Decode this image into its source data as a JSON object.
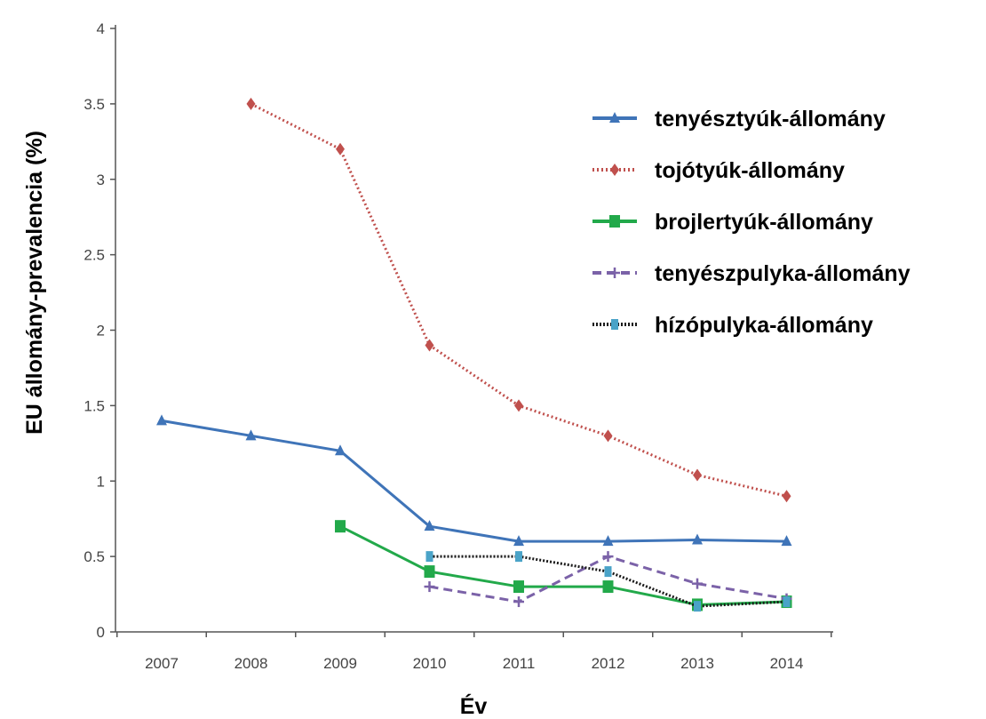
{
  "chart_data": {
    "type": "line",
    "xlabel": "Év",
    "ylabel": "EU állomány-prevalencia (%)",
    "ylim": [
      0,
      4
    ],
    "y_ticks": [
      "0",
      "0.5",
      "1",
      "1.5",
      "2",
      "2.5",
      "3",
      "3.5",
      "4"
    ],
    "categories": [
      "2007",
      "2008",
      "2009",
      "2010",
      "2011",
      "2012",
      "2013",
      "2014"
    ],
    "grid": false,
    "legend_position": "top-right",
    "series": [
      {
        "name": "tenyésztyúk-állomány",
        "color": "#3f74b8",
        "dash": "solid",
        "marker": "triangle",
        "values": [
          1.4,
          1.3,
          1.2,
          0.7,
          0.6,
          0.6,
          0.61,
          0.6
        ]
      },
      {
        "name": "tojótyúk-állomány",
        "color": "#c0504d",
        "dash": "dotted",
        "marker": "diamond",
        "values": [
          null,
          3.5,
          3.2,
          1.9,
          1.5,
          1.3,
          1.04,
          0.9
        ]
      },
      {
        "name": "brojlertyúk-állomány",
        "color": "#22a94a",
        "dash": "solid",
        "marker": "square",
        "values": [
          null,
          null,
          0.7,
          0.4,
          0.3,
          0.3,
          0.18,
          0.2
        ]
      },
      {
        "name": "tenyészpulyka-állomány",
        "color": "#7b62a8",
        "dash": "dashed",
        "marker": "plus",
        "values": [
          null,
          null,
          null,
          0.3,
          0.2,
          0.5,
          0.32,
          0.22
        ]
      },
      {
        "name": "hízópulyka-állomány",
        "color": "#1a1a1a",
        "marker_color": "#4aa3c8",
        "dash": "densedot",
        "marker": "x",
        "values": [
          null,
          null,
          null,
          0.5,
          0.5,
          0.4,
          0.17,
          0.2
        ]
      }
    ]
  }
}
